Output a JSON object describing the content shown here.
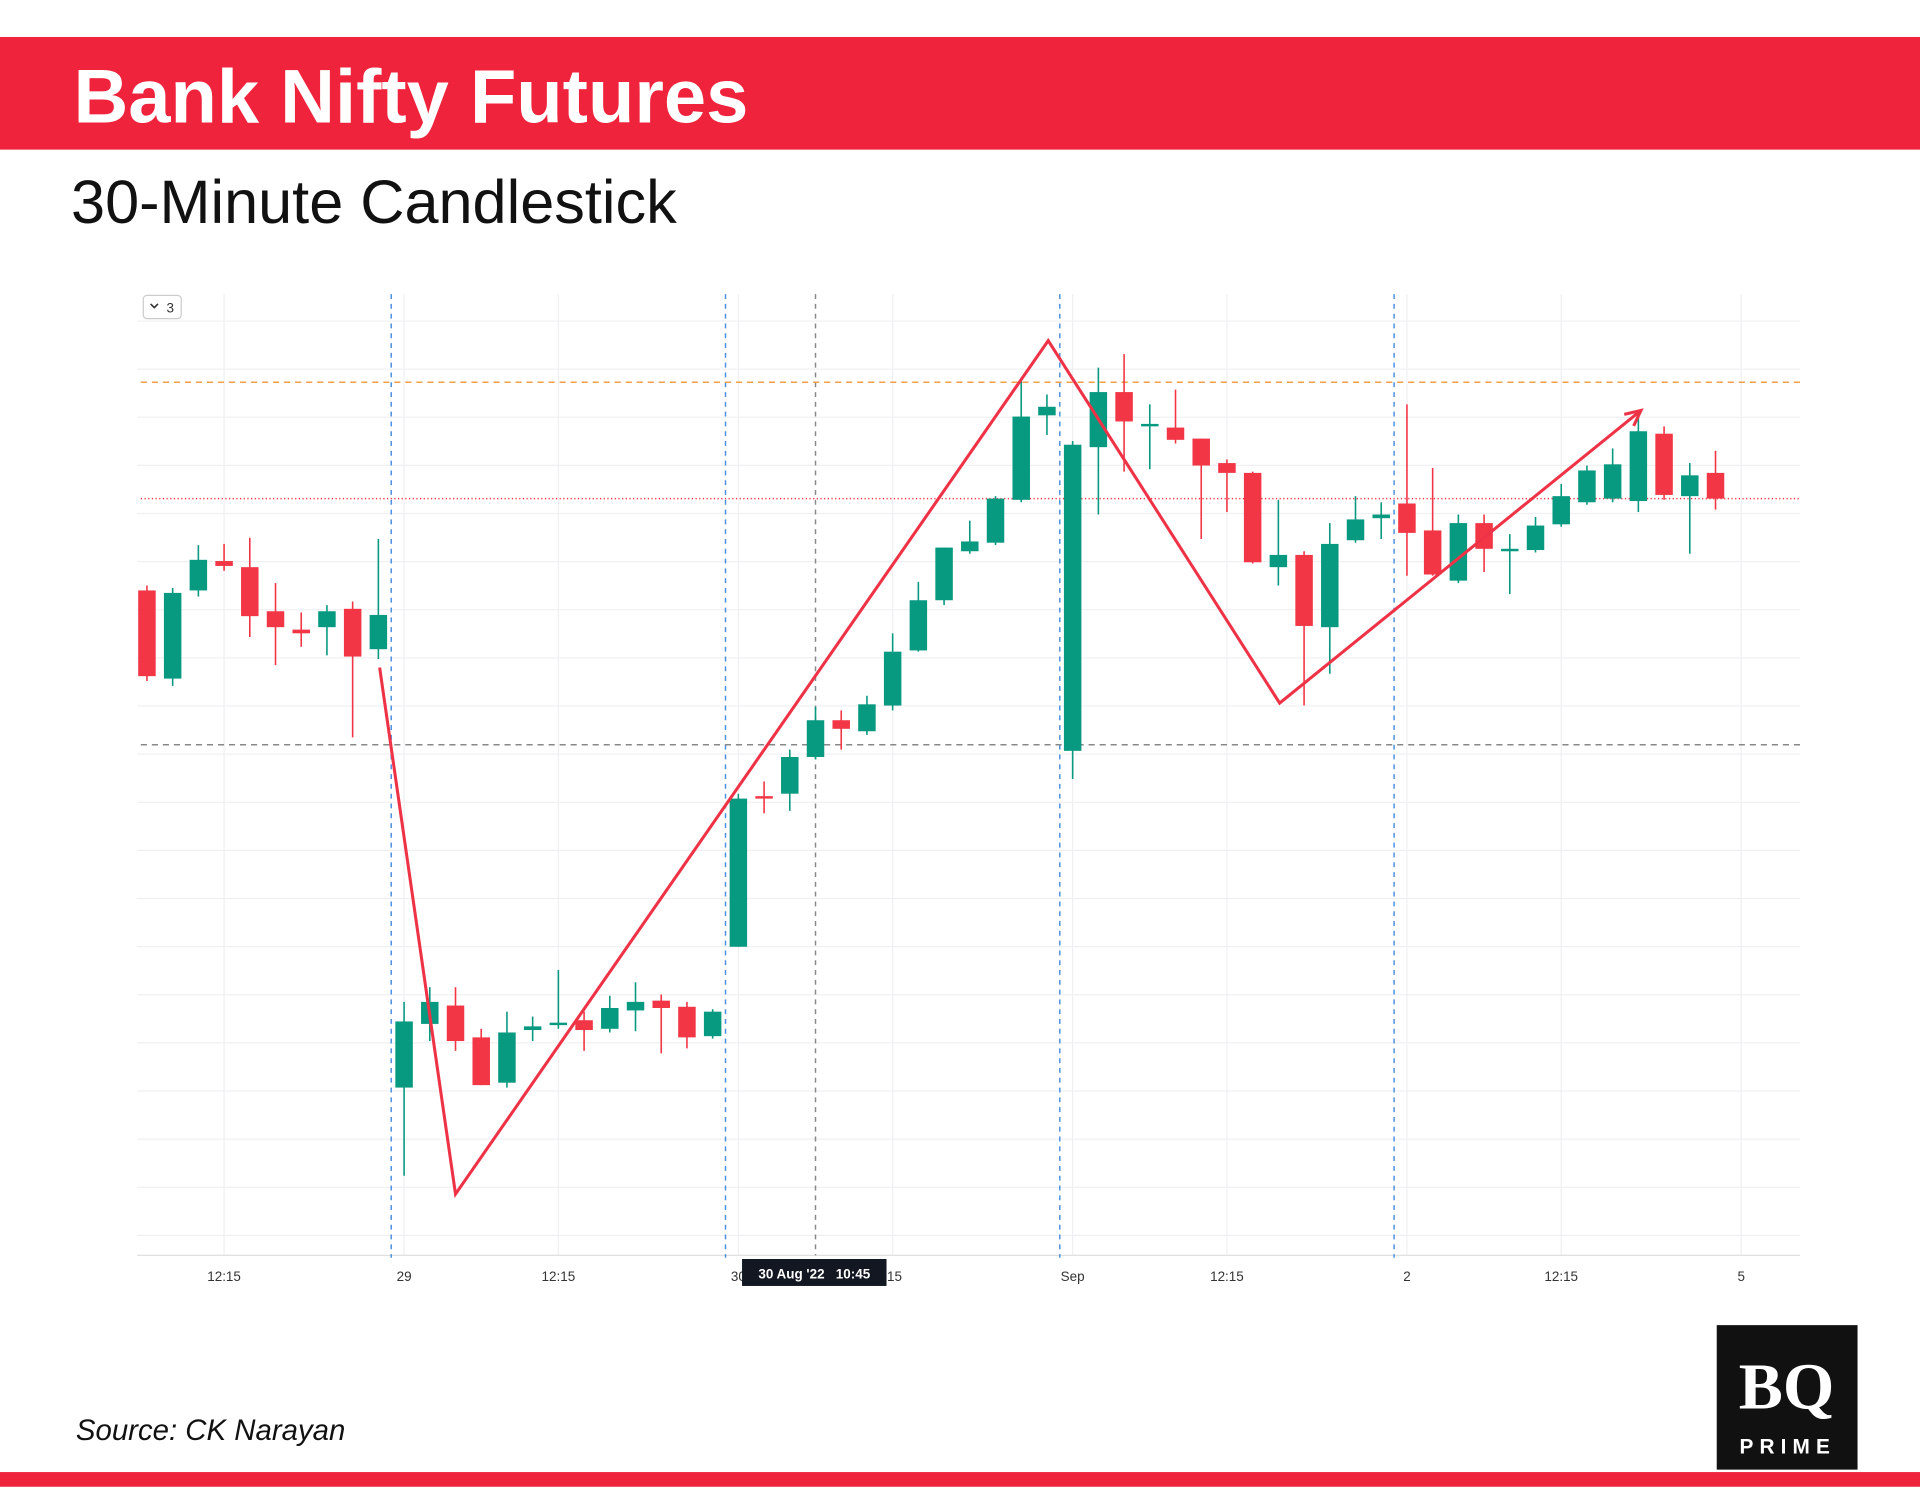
{
  "chart_data": {
    "type": "candlestick",
    "title": "Bank Nifty Futures",
    "subtitle": "30-Minute Candlestick",
    "source": "Source: CK Narayan",
    "logo": {
      "main": "BQ",
      "sub": "PRIME"
    },
    "badge": "3",
    "up_color": "#089981",
    "down_color": "#f23645",
    "open": [
      543,
      471,
      543,
      567,
      562,
      526,
      511,
      513,
      528,
      495,
      137,
      189,
      204,
      178,
      141,
      184,
      188,
      192,
      185,
      200,
      208,
      203,
      179,
      252,
      375,
      377,
      407,
      437,
      428,
      449,
      494,
      535,
      575,
      582,
      617,
      686,
      412,
      660,
      705,
      677,
      676,
      667,
      647,
      639,
      562,
      572,
      513,
      584,
      602,
      614,
      592,
      551,
      598,
      575,
      576,
      597,
      615,
      618,
      616,
      671,
      620,
      639
    ],
    "high": [
      547,
      545,
      580,
      581,
      586,
      549,
      525,
      531,
      534,
      585,
      207,
      219,
      219,
      185,
      199,
      195,
      233,
      199,
      212,
      223,
      213,
      207,
      201,
      377,
      387,
      413,
      448,
      445,
      457,
      508,
      550,
      578,
      600,
      620,
      717,
      703,
      665,
      725,
      736,
      695,
      707,
      667,
      650,
      640,
      617,
      575,
      598,
      620,
      615,
      695,
      643,
      605,
      605,
      589,
      603,
      630,
      645,
      659,
      685,
      677,
      647,
      657
    ],
    "low": [
      469,
      465,
      538,
      559,
      505,
      482,
      497,
      490,
      423,
      487,
      65,
      175,
      167,
      139,
      137,
      175,
      185,
      167,
      182,
      183,
      165,
      169,
      177,
      252,
      361,
      363,
      405,
      413,
      425,
      445,
      493,
      531,
      573,
      580,
      615,
      670,
      389,
      605,
      640,
      642,
      663,
      585,
      607,
      565,
      547,
      449,
      475,
      582,
      585,
      555,
      555,
      549,
      558,
      540,
      574,
      595,
      613,
      615,
      607,
      617,
      573,
      609
    ],
    "close": [
      473,
      541,
      568,
      563,
      522,
      513,
      508,
      526,
      489,
      523,
      191,
      207,
      175,
      139,
      182,
      187,
      190,
      184,
      202,
      207,
      202,
      178,
      199,
      373,
      373,
      407,
      437,
      430,
      450,
      493,
      535,
      578,
      583,
      618,
      685,
      693,
      662,
      705,
      681,
      679,
      666,
      645,
      639,
      566,
      572,
      514,
      581,
      601,
      605,
      590,
      556,
      598,
      577,
      577,
      596,
      620,
      641,
      646,
      673,
      621,
      637,
      618
    ],
    "xlim": [
      -1,
      63
    ],
    "ylim": [
      0,
      785
    ],
    "xticks": [
      {
        "value": 3,
        "label": "12:15"
      },
      {
        "value": 10,
        "label": "29"
      },
      {
        "value": 16,
        "label": "12:15"
      },
      {
        "value": 23,
        "label": "30"
      },
      {
        "value": 29,
        "label": ":15"
      },
      {
        "value": 36,
        "label": "Sep"
      },
      {
        "value": 42,
        "label": "12:15"
      },
      {
        "value": 49,
        "label": "2"
      },
      {
        "value": 55,
        "label": "12:15"
      },
      {
        "value": 62,
        "label": "5"
      }
    ],
    "grid": true,
    "separators": [
      9.5,
      22.5,
      35.5,
      48.5
    ],
    "separator_color": "#4a8fe0",
    "crosshair": {
      "x": 26,
      "label": "30 Aug '22   10:45",
      "color": "#888888"
    },
    "levels": [
      {
        "value": 713,
        "color": "#f0a048",
        "style": "dashed"
      },
      {
        "value": 618,
        "color": "#f23645",
        "style": "dotted"
      },
      {
        "value": 417,
        "color": "#888888",
        "style": "dashed"
      }
    ],
    "zigzag": {
      "x": [
        9.05,
        12,
        35.05,
        44.05,
        58.1
      ],
      "values": [
        480,
        50,
        747,
        451,
        690
      ],
      "color": "#ef3347"
    }
  }
}
